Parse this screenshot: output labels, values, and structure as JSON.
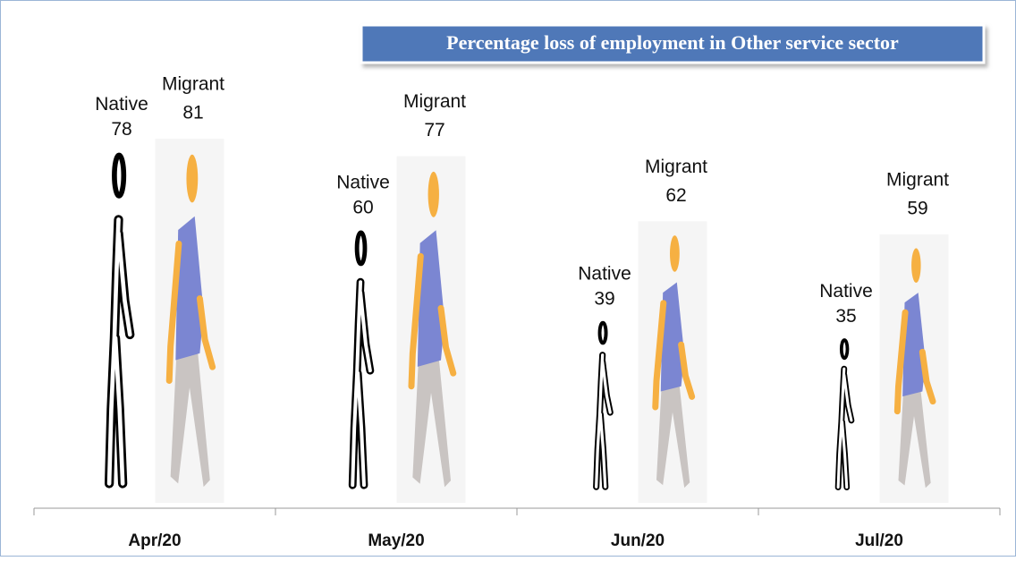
{
  "chart_data": {
    "type": "pictograph",
    "title": "Percentage loss of employment in Other service sector",
    "categories": [
      "Apr/20",
      "May/20",
      "Jun/20",
      "Jul/20"
    ],
    "series": [
      {
        "name": "Native",
        "color": "#000000",
        "values": [
          78,
          60,
          39,
          35
        ]
      },
      {
        "name": "Migrant",
        "color": "#7b86d2",
        "values": [
          81,
          77,
          62,
          59
        ]
      }
    ]
  }
}
